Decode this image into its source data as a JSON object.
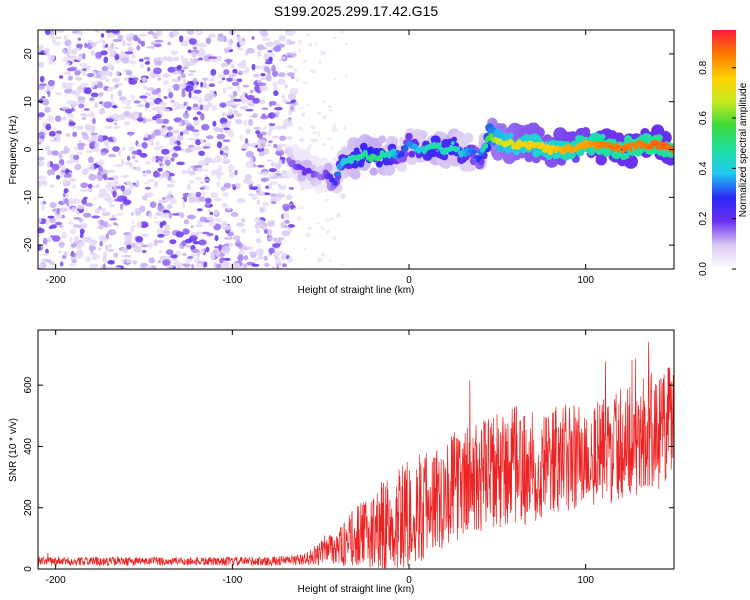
{
  "title": "S199.2025.299.17.42.G15",
  "chart_data": [
    {
      "type": "heatmap",
      "title": "S199.2025.299.17.42.G15",
      "xlabel": "Height of straight line (km)",
      "ylabel": "Frequency (Hz)",
      "xlim": [
        -210,
        150
      ],
      "ylim": [
        -25,
        25
      ],
      "xticks": [
        -200,
        -100,
        0,
        100
      ],
      "yticks": [
        -20,
        -10,
        0,
        10,
        20
      ],
      "xtick_labels": [
        "-200",
        "-100",
        "0",
        "100"
      ],
      "ytick_labels": [
        "-20",
        "-10",
        "0",
        "10",
        "20"
      ],
      "noise_region_x": [
        -210,
        -65
      ],
      "ridge": {
        "x": [
          -68,
          -62,
          -56,
          -50,
          -46,
          -42,
          -38,
          -34,
          -30,
          -25,
          -20,
          -15,
          -10,
          -5,
          0,
          5,
          10,
          15,
          20,
          25,
          30,
          35,
          40,
          45,
          50,
          60,
          70,
          80,
          90,
          100,
          110,
          120,
          130,
          140,
          150
        ],
        "frequency": [
          -2,
          -4,
          -5,
          -6,
          -5,
          -7,
          -3,
          -2,
          -2,
          -1,
          -2,
          -1,
          -1,
          -1,
          1,
          0,
          0,
          1,
          0,
          1,
          -1,
          0,
          -2,
          3,
          2,
          1,
          1,
          0,
          0,
          1,
          1,
          0,
          1,
          1,
          0
        ],
        "amplitude": [
          0.15,
          0.2,
          0.2,
          0.15,
          0.2,
          0.3,
          0.4,
          0.45,
          0.5,
          0.5,
          0.55,
          0.5,
          0.45,
          0.3,
          0.35,
          0.4,
          0.45,
          0.5,
          0.45,
          0.5,
          0.4,
          0.35,
          0.3,
          0.6,
          0.7,
          0.75,
          0.8,
          0.8,
          0.85,
          0.85,
          0.9,
          0.9,
          0.9,
          0.92,
          0.92
        ]
      },
      "colorbar": {
        "label": "Normalized spectral amplitude",
        "range": [
          0,
          0.95
        ],
        "ticks": [
          0.0,
          0.2,
          0.4,
          0.6,
          0.8
        ],
        "tick_labels": [
          "0.0",
          "0.2",
          "0.4",
          "0.6",
          "0.8"
        ]
      }
    },
    {
      "type": "line",
      "xlabel": "Height of straight line (km)",
      "ylabel": "SNR (10 * v/v)",
      "xlim": [
        -210,
        150
      ],
      "ylim": [
        0,
        780
      ],
      "xticks": [
        -200,
        -100,
        0,
        100
      ],
      "yticks": [
        0,
        200,
        400,
        600
      ],
      "xtick_labels": [
        "-200",
        "-100",
        "0",
        "100"
      ],
      "ytick_labels": [
        "0",
        "200",
        "400",
        "600"
      ],
      "series": [
        {
          "name": "SNR",
          "color": "#ee2222",
          "x": [
            -210,
            -200,
            -180,
            -160,
            -140,
            -120,
            -100,
            -80,
            -70,
            -60,
            -50,
            -45,
            -40,
            -35,
            -30,
            -25,
            -20,
            -15,
            -10,
            -5,
            0,
            10,
            20,
            30,
            40,
            50,
            60,
            70,
            80,
            90,
            100,
            110,
            120,
            130,
            140,
            150
          ],
          "mean": [
            25,
            25,
            25,
            25,
            25,
            25,
            25,
            25,
            28,
            30,
            50,
            80,
            70,
            85,
            110,
            110,
            130,
            140,
            150,
            160,
            180,
            210,
            250,
            280,
            300,
            310,
            330,
            330,
            350,
            360,
            370,
            380,
            410,
            430,
            450,
            470
          ],
          "spread": [
            14,
            14,
            14,
            14,
            14,
            14,
            14,
            15,
            16,
            18,
            40,
            60,
            60,
            80,
            100,
            110,
            130,
            150,
            160,
            170,
            180,
            180,
            180,
            180,
            190,
            200,
            200,
            190,
            180,
            180,
            180,
            180,
            180,
            190,
            200,
            200
          ]
        }
      ]
    }
  ]
}
